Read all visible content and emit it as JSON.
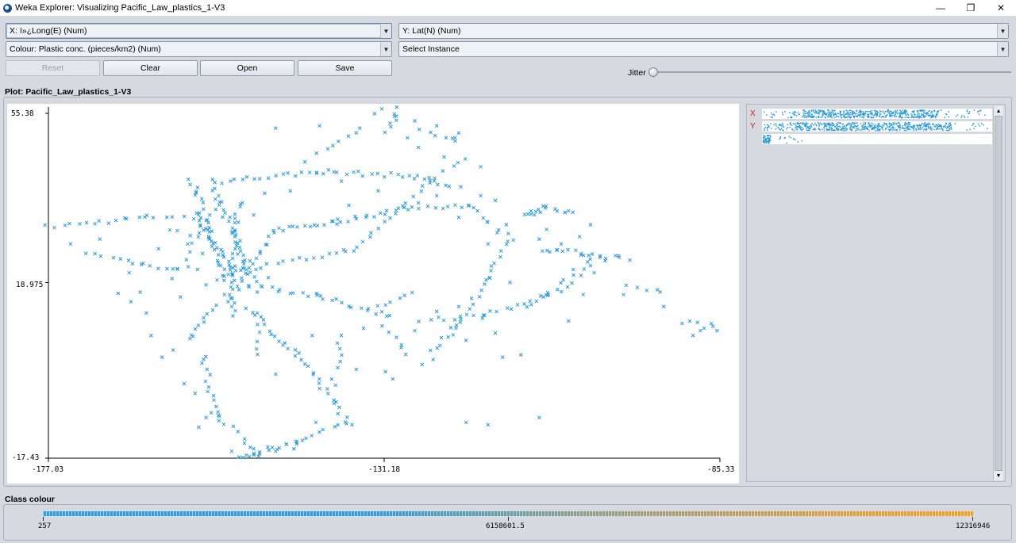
{
  "window": {
    "title": "Weka Explorer: Visualizing Pacific_Law_plastics_1-V3",
    "minimize": "—",
    "maximize": "❐",
    "close": "✕"
  },
  "controls": {
    "x_axis_select": "X: ï»¿Long(E) (Num)",
    "y_axis_select": "Y: Lat(N) (Num)",
    "colour_select": "Colour: Plastic conc. (pieces/km2) (Num)",
    "instance_select": "Select Instance",
    "reset_label": "Reset",
    "clear_label": "Clear",
    "open_label": "Open",
    "save_label": "Save",
    "jitter_label": "Jitter",
    "jitter_level": 0
  },
  "plot": {
    "title": "Plot: Pacific_Law_plastics_1-V3",
    "x_min_label": "-177.03",
    "x_mid_label": "-131.18",
    "x_max_label": "-85.33",
    "y_max_label": "55.38",
    "y_mid_label": "18.975",
    "y_min_label": "-17.43"
  },
  "side": {
    "x_letter": "X",
    "y_letter": "Y"
  },
  "class_colour": {
    "title": "Class colour",
    "min_label": "257",
    "mid_label": "6158601.5",
    "max_label": "12316946"
  },
  "colors": {
    "point": "#2b9ad8",
    "bar_low": "#2f9be0",
    "bar_high": "#f2a12a"
  },
  "chart_data": {
    "type": "scatter",
    "marker": "x",
    "xlabel": "ï»¿Long(E)",
    "ylabel": "Lat(N)",
    "xlim": [
      -177.03,
      -85.33
    ],
    "ylim": [
      -17.43,
      55.38
    ],
    "ticks": {
      "x": [
        "-177.03",
        "-131.18",
        "-85.33"
      ],
      "y": [
        "55.38",
        "18.975",
        "-17.43"
      ]
    },
    "tracks": [
      {
        "from": [
          -177.0,
          30.5
        ],
        "to": [
          -164.0,
          32.5
        ],
        "n": 14
      },
      {
        "from": [
          -164.0,
          32.5
        ],
        "to": [
          -157.0,
          33.0
        ],
        "n": 6
      },
      {
        "from": [
          -157.0,
          33.0
        ],
        "to": [
          -151.5,
          20.5
        ],
        "n": 22
      },
      {
        "from": [
          -157.5,
          40.5
        ],
        "to": [
          -152.5,
          18.5
        ],
        "n": 30
      },
      {
        "from": [
          -155.0,
          40.0
        ],
        "to": [
          -149.0,
          19.0
        ],
        "n": 30
      },
      {
        "from": [
          -151.0,
          36.0
        ],
        "to": [
          -152.0,
          12.0
        ],
        "n": 30
      },
      {
        "from": [
          -150.5,
          20.0
        ],
        "to": [
          -146.0,
          30.0
        ],
        "n": 12
      },
      {
        "from": [
          -146.0,
          30.0
        ],
        "to": [
          -138.0,
          31.5
        ],
        "n": 12
      },
      {
        "from": [
          -138.0,
          31.5
        ],
        "to": [
          -128.0,
          34.5
        ],
        "n": 16
      },
      {
        "from": [
          -128.0,
          34.5
        ],
        "to": [
          -120.0,
          35.0
        ],
        "n": 10
      },
      {
        "from": [
          -120.0,
          35.0
        ],
        "to": [
          -114.0,
          28.0
        ],
        "n": 10
      },
      {
        "from": [
          -114.0,
          28.0
        ],
        "to": [
          -117.0,
          20.0
        ],
        "n": 8
      },
      {
        "from": [
          -117.0,
          20.0
        ],
        "to": [
          -121.0,
          10.0
        ],
        "n": 12
      },
      {
        "from": [
          -121.0,
          10.0
        ],
        "to": [
          -125.0,
          5.0
        ],
        "n": 8
      },
      {
        "from": [
          -152.0,
          21.0
        ],
        "to": [
          -135.0,
          26.0
        ],
        "n": 18
      },
      {
        "from": [
          -135.0,
          26.0
        ],
        "to": [
          -125.0,
          40.0
        ],
        "n": 14
      },
      {
        "from": [
          -125.0,
          40.0
        ],
        "to": [
          -120.0,
          45.0
        ],
        "n": 6
      },
      {
        "from": [
          -153.0,
          40.0
        ],
        "to": [
          -140.0,
          42.0
        ],
        "n": 16
      },
      {
        "from": [
          -140.0,
          42.0
        ],
        "to": [
          -127.0,
          41.0
        ],
        "n": 16
      },
      {
        "from": [
          -127.0,
          41.0
        ],
        "to": [
          -121.0,
          38.5
        ],
        "n": 8
      },
      {
        "from": [
          -140.0,
          46.0
        ],
        "to": [
          -135.0,
          50.0
        ],
        "n": 6
      },
      {
        "from": [
          -131.0,
          50.0
        ],
        "to": [
          -129.0,
          55.0
        ],
        "n": 7
      },
      {
        "from": [
          -126.0,
          51.0
        ],
        "to": [
          -121.0,
          48.0
        ],
        "n": 6
      },
      {
        "from": [
          -151.0,
          19.0
        ],
        "to": [
          -140.0,
          16.0
        ],
        "n": 14
      },
      {
        "from": [
          -140.0,
          16.0
        ],
        "to": [
          -130.0,
          12.0
        ],
        "n": 14
      },
      {
        "from": [
          -150.0,
          14.0
        ],
        "to": [
          -143.0,
          4.0
        ],
        "n": 14
      },
      {
        "from": [
          -143.0,
          4.0
        ],
        "to": [
          -138.0,
          -6.0
        ],
        "n": 12
      },
      {
        "from": [
          -138.0,
          -6.0
        ],
        "to": [
          -136.0,
          -10.0
        ],
        "n": 5
      },
      {
        "from": [
          -136.0,
          -10.0
        ],
        "to": [
          -143.0,
          -14.0
        ],
        "n": 10
      },
      {
        "from": [
          -143.0,
          -14.0
        ],
        "to": [
          -150.0,
          -17.0
        ],
        "n": 14
      },
      {
        "from": [
          -154.0,
          -8.0
        ],
        "to": [
          -148.0,
          -17.0
        ],
        "n": 10
      },
      {
        "from": [
          -156.0,
          4.0
        ],
        "to": [
          -154.0,
          -10.0
        ],
        "n": 14
      },
      {
        "from": [
          -154.0,
          14.0
        ],
        "to": [
          -158.0,
          7.0
        ],
        "n": 10
      },
      {
        "from": [
          -149.0,
          12.0
        ],
        "to": [
          -148.0,
          4.0
        ],
        "n": 6
      },
      {
        "from": [
          -138.0,
          -2.0
        ],
        "to": [
          -137.0,
          8.0
        ],
        "n": 8
      },
      {
        "from": [
          -112.0,
          33.0
        ],
        "to": [
          -109.0,
          34.5
        ],
        "n": 10
      },
      {
        "from": [
          -109.0,
          34.5
        ],
        "to": [
          -105.0,
          33.5
        ],
        "n": 6
      },
      {
        "from": [
          -110.0,
          26.0
        ],
        "to": [
          -104.0,
          25.0
        ],
        "n": 10
      },
      {
        "from": [
          -104.0,
          25.0
        ],
        "to": [
          -98.0,
          24.0
        ],
        "n": 10
      },
      {
        "from": [
          -103.0,
          24.0
        ],
        "to": [
          -109.0,
          16.0
        ],
        "n": 10
      },
      {
        "from": [
          -109.0,
          16.0
        ],
        "to": [
          -118.0,
          12.0
        ],
        "n": 12
      },
      {
        "from": [
          -118.0,
          12.0
        ],
        "to": [
          -126.0,
          11.0
        ],
        "n": 8
      },
      {
        "from": [
          -104.0,
          20.0
        ],
        "to": [
          -112.0,
          14.0
        ],
        "n": 8
      },
      {
        "from": [
          -98.0,
          18.0
        ],
        "to": [
          -93.0,
          17.0
        ],
        "n": 5
      },
      {
        "from": [
          -89.0,
          11.0
        ],
        "to": [
          -86.0,
          9.0
        ],
        "n": 5
      },
      {
        "from": [
          -172.0,
          25.0
        ],
        "to": [
          -164.0,
          22.5
        ],
        "n": 8
      },
      {
        "from": [
          -164.0,
          22.5
        ],
        "to": [
          -157.0,
          22.0
        ],
        "n": 8
      },
      {
        "from": [
          -160.0,
          30.0
        ],
        "to": [
          -157.0,
          28.0
        ],
        "n": 4
      },
      {
        "from": [
          -164.0,
          13.0
        ],
        "to": [
          -168.0,
          17.0
        ],
        "n": 3
      },
      {
        "from": [
          -154.0,
          36.0
        ],
        "to": [
          -160.0,
          20.0
        ],
        "n": 10
      },
      {
        "from": [
          -131.0,
          10.0
        ],
        "to": [
          -128.0,
          4.0
        ],
        "n": 6
      },
      {
        "from": [
          -132.0,
          14.0
        ],
        "to": [
          -127.0,
          16.5
        ],
        "n": 6
      }
    ],
    "points": [
      [
        -131.5,
        55.0
      ],
      [
        -132.5,
        54.0
      ],
      [
        -129.5,
        53.5
      ],
      [
        -127.0,
        52.5
      ],
      [
        -124.0,
        51.5
      ],
      [
        -121.0,
        50.0
      ],
      [
        -121.5,
        49.0
      ],
      [
        -134.5,
        51.0
      ],
      [
        -140.0,
        51.5
      ],
      [
        -146.0,
        51.0
      ],
      [
        -118.0,
        37.0
      ],
      [
        -116.0,
        36.0
      ],
      [
        -104.0,
        16.5
      ],
      [
        -98.5,
        16.5
      ],
      [
        -93.0,
        14.0
      ],
      [
        -90.5,
        10.5
      ],
      [
        -89.0,
        8.0
      ],
      [
        -88.0,
        9.0
      ],
      [
        -86.5,
        10.5
      ],
      [
        -120.0,
        -10.0
      ],
      [
        -117.0,
        -10.5
      ],
      [
        -110.0,
        -9.0
      ],
      [
        -115.0,
        3.5
      ],
      [
        -120.0,
        7.0
      ],
      [
        -116.0,
        8.5
      ],
      [
        -124.5,
        3.0
      ],
      [
        -126.0,
        2.0
      ],
      [
        -131.0,
        0.5
      ],
      [
        -135.0,
        1.0
      ],
      [
        -130.0,
        -1.0
      ],
      [
        -112.5,
        4.0
      ],
      [
        -106.0,
        11.0
      ],
      [
        -114.0,
        19.0
      ],
      [
        -117.0,
        27.0
      ],
      [
        -109.0,
        30.0
      ],
      [
        -107.0,
        27.0
      ],
      [
        -104.5,
        28.5
      ],
      [
        -103.0,
        31.0
      ],
      [
        -106.5,
        33.5
      ],
      [
        -118.0,
        43.0
      ],
      [
        -123.0,
        45.0
      ],
      [
        -126.5,
        47.0
      ],
      [
        -128.0,
        49.0
      ],
      [
        -170.0,
        28.0
      ],
      [
        -162.0,
        26.0
      ],
      [
        -174.0,
        27.0
      ],
      [
        -166.0,
        21.0
      ],
      [
        -164.5,
        17.0
      ],
      [
        -159.0,
        16.0
      ],
      [
        -155.5,
        18.5
      ],
      [
        -153.0,
        16.5
      ],
      [
        -152.5,
        15.0
      ],
      [
        -151.0,
        17.5
      ],
      [
        -150.5,
        22.0
      ],
      [
        -149.5,
        23.5
      ],
      [
        -153.5,
        22.5
      ],
      [
        -154.0,
        19.5
      ],
      [
        -152.0,
        19.0
      ],
      [
        -148.5,
        17.0
      ],
      [
        -147.0,
        20.0
      ],
      [
        -156.0,
        25.0
      ],
      [
        -158.0,
        27.0
      ],
      [
        -155.0,
        33.0
      ],
      [
        -149.0,
        33.0
      ],
      [
        -147.5,
        37.5
      ],
      [
        -144.0,
        38.0
      ],
      [
        -142.0,
        44.0
      ],
      [
        -137.0,
        40.0
      ],
      [
        -136.0,
        35.0
      ],
      [
        -132.0,
        38.0
      ],
      [
        -124.0,
        37.0
      ],
      [
        -126.5,
        35.5
      ],
      [
        -121.0,
        32.5
      ],
      [
        -114.5,
        31.0
      ],
      [
        -110.0,
        28.0
      ],
      [
        -103.0,
        22.5
      ],
      [
        -101.0,
        23.5
      ],
      [
        -102.5,
        21.0
      ],
      [
        -121.0,
        14.0
      ],
      [
        -124.0,
        13.0
      ],
      [
        -127.0,
        9.0
      ],
      [
        -134.0,
        9.5
      ],
      [
        -141.0,
        8.0
      ],
      [
        -145.0,
        6.0
      ],
      [
        -146.0,
        0.0
      ],
      [
        -140.0,
        -3.0
      ],
      [
        -140.5,
        -10.0
      ],
      [
        -143.5,
        -15.5
      ],
      [
        -146.0,
        -16.0
      ],
      [
        -149.0,
        -15.5
      ],
      [
        -151.0,
        -17.2
      ],
      [
        -150.0,
        -16.8
      ],
      [
        -152.0,
        -16.0
      ],
      [
        -155.5,
        -9.0
      ],
      [
        -156.5,
        -11.0
      ],
      [
        -157.0,
        -4.0
      ],
      [
        -158.5,
        -2.0
      ],
      [
        -160.0,
        5.0
      ],
      [
        -161.5,
        3.5
      ],
      [
        -163.0,
        8.0
      ]
    ]
  }
}
